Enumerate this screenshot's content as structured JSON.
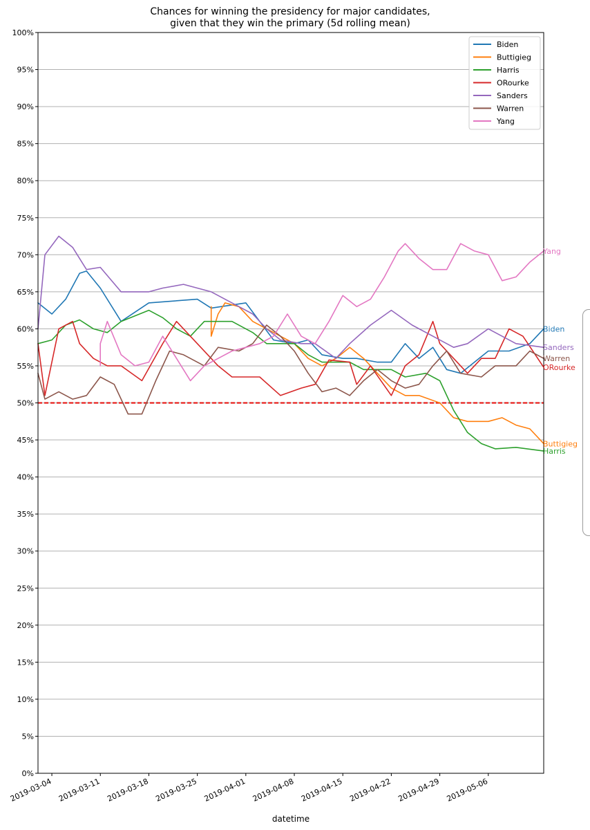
{
  "chart_data": {
    "type": "line",
    "title": [
      "Chances for winning the presidency for major candidates,",
      "given that they win the primary (5d rolling mean)"
    ],
    "xlabel": "datetime",
    "ylabel": "",
    "x_ticks": [
      "2019-03-04",
      "2019-03-11",
      "2019-03-18",
      "2019-03-25",
      "2019-04-01",
      "2019-04-08",
      "2019-04-15",
      "2019-04-22",
      "2019-04-29",
      "2019-05-06"
    ],
    "xlim": [
      "2019-03-02",
      "2019-05-14"
    ],
    "y_ticks": [
      "0%",
      "5%",
      "10%",
      "15%",
      "20%",
      "25%",
      "30%",
      "35%",
      "40%",
      "45%",
      "50%",
      "55%",
      "60%",
      "65%",
      "70%",
      "75%",
      "80%",
      "85%",
      "90%",
      "95%",
      "100%"
    ],
    "ylim": [
      0,
      100
    ],
    "grid": "horizontal",
    "legend_position": "top-right",
    "reference_line": {
      "y": 50,
      "color": "#e8211d",
      "style": "dashed"
    },
    "series": [
      {
        "name": "Biden",
        "color": "#1f77b4",
        "points": [
          [
            "2019-03-02",
            63.5
          ],
          [
            "2019-03-04",
            62
          ],
          [
            "2019-03-06",
            64
          ],
          [
            "2019-03-08",
            67.5
          ],
          [
            "2019-03-09",
            67.8
          ],
          [
            "2019-03-11",
            65.5
          ],
          [
            "2019-03-14",
            61
          ],
          [
            "2019-03-18",
            63.5
          ],
          [
            "2019-03-25",
            64
          ],
          [
            "2019-03-27",
            62.8
          ],
          [
            "2019-04-01",
            63.5
          ],
          [
            "2019-04-03",
            61
          ],
          [
            "2019-04-05",
            58.5
          ],
          [
            "2019-04-08",
            58
          ],
          [
            "2019-04-10",
            58.5
          ],
          [
            "2019-04-12",
            56.5
          ],
          [
            "2019-04-15",
            56
          ],
          [
            "2019-04-17",
            56
          ],
          [
            "2019-04-20",
            55.5
          ],
          [
            "2019-04-22",
            55.5
          ],
          [
            "2019-04-24",
            58
          ],
          [
            "2019-04-26",
            56
          ],
          [
            "2019-04-28",
            57.5
          ],
          [
            "2019-04-30",
            54.5
          ],
          [
            "2019-05-02",
            54
          ],
          [
            "2019-05-04",
            55.5
          ],
          [
            "2019-05-06",
            57
          ],
          [
            "2019-05-09",
            57
          ],
          [
            "2019-05-12",
            58
          ],
          [
            "2019-05-14",
            60
          ]
        ]
      },
      {
        "name": "Buttigieg",
        "color": "#ff7f0e",
        "points": [
          [
            "2019-03-27",
            63
          ],
          [
            "2019-03-27",
            59
          ],
          [
            "2019-03-28",
            62
          ],
          [
            "2019-03-29",
            63.5
          ],
          [
            "2019-03-31",
            63
          ],
          [
            "2019-04-02",
            61
          ],
          [
            "2019-04-04",
            60
          ],
          [
            "2019-04-06",
            59
          ],
          [
            "2019-04-08",
            58
          ],
          [
            "2019-04-10",
            56
          ],
          [
            "2019-04-12",
            55
          ],
          [
            "2019-04-14",
            56
          ],
          [
            "2019-04-16",
            57.5
          ],
          [
            "2019-04-18",
            56
          ],
          [
            "2019-04-20",
            54
          ],
          [
            "2019-04-22",
            52
          ],
          [
            "2019-04-24",
            51
          ],
          [
            "2019-04-26",
            51
          ],
          [
            "2019-04-29",
            50
          ],
          [
            "2019-05-01",
            48
          ],
          [
            "2019-05-03",
            47.5
          ],
          [
            "2019-05-06",
            47.5
          ],
          [
            "2019-05-08",
            48
          ],
          [
            "2019-05-10",
            47
          ],
          [
            "2019-05-12",
            46.5
          ],
          [
            "2019-05-14",
            44.5
          ]
        ]
      },
      {
        "name": "Harris",
        "color": "#2ca02c",
        "points": [
          [
            "2019-03-02",
            58
          ],
          [
            "2019-03-04",
            58.5
          ],
          [
            "2019-03-06",
            60.5
          ],
          [
            "2019-03-08",
            61.2
          ],
          [
            "2019-03-10",
            60
          ],
          [
            "2019-03-12",
            59.5
          ],
          [
            "2019-03-14",
            61
          ],
          [
            "2019-03-18",
            62.5
          ],
          [
            "2019-03-20",
            61.5
          ],
          [
            "2019-03-22",
            60
          ],
          [
            "2019-03-24",
            59
          ],
          [
            "2019-03-26",
            61
          ],
          [
            "2019-03-30",
            61
          ],
          [
            "2019-04-02",
            59.5
          ],
          [
            "2019-04-04",
            58
          ],
          [
            "2019-04-08",
            58
          ],
          [
            "2019-04-10",
            56.5
          ],
          [
            "2019-04-12",
            55.5
          ],
          [
            "2019-04-16",
            55.5
          ],
          [
            "2019-04-18",
            54.5
          ],
          [
            "2019-04-22",
            54.5
          ],
          [
            "2019-04-24",
            53.5
          ],
          [
            "2019-04-27",
            54
          ],
          [
            "2019-04-29",
            53
          ],
          [
            "2019-05-01",
            49
          ],
          [
            "2019-05-03",
            46
          ],
          [
            "2019-05-05",
            44.5
          ],
          [
            "2019-05-07",
            43.8
          ],
          [
            "2019-05-10",
            44
          ],
          [
            "2019-05-14",
            43.5
          ]
        ]
      },
      {
        "name": "ORourke",
        "color": "#d62728",
        "points": [
          [
            "2019-03-02",
            58
          ],
          [
            "2019-03-03",
            51
          ],
          [
            "2019-03-05",
            60
          ],
          [
            "2019-03-07",
            61
          ],
          [
            "2019-03-08",
            58
          ],
          [
            "2019-03-10",
            56
          ],
          [
            "2019-03-12",
            55
          ],
          [
            "2019-03-14",
            55
          ],
          [
            "2019-03-17",
            53
          ],
          [
            "2019-03-20",
            58
          ],
          [
            "2019-03-22",
            61
          ],
          [
            "2019-03-25",
            58
          ],
          [
            "2019-03-28",
            55
          ],
          [
            "2019-03-30",
            53.5
          ],
          [
            "2019-04-03",
            53.5
          ],
          [
            "2019-04-06",
            51
          ],
          [
            "2019-04-09",
            52
          ],
          [
            "2019-04-11",
            52.5
          ],
          [
            "2019-04-13",
            55.8
          ],
          [
            "2019-04-16",
            55.5
          ],
          [
            "2019-04-17",
            52.5
          ],
          [
            "2019-04-19",
            55
          ],
          [
            "2019-04-22",
            51
          ],
          [
            "2019-04-24",
            55
          ],
          [
            "2019-04-26",
            56.5
          ],
          [
            "2019-04-28",
            61
          ],
          [
            "2019-04-29",
            58
          ],
          [
            "2019-05-01",
            56
          ],
          [
            "2019-05-03",
            54
          ],
          [
            "2019-05-05",
            56
          ],
          [
            "2019-05-07",
            56
          ],
          [
            "2019-05-09",
            60
          ],
          [
            "2019-05-11",
            59
          ],
          [
            "2019-05-14",
            54.8
          ]
        ]
      },
      {
        "name": "Sanders",
        "color": "#9467bd",
        "points": [
          [
            "2019-03-02",
            60
          ],
          [
            "2019-03-03",
            70
          ],
          [
            "2019-03-05",
            72.5
          ],
          [
            "2019-03-07",
            71
          ],
          [
            "2019-03-09",
            68
          ],
          [
            "2019-03-11",
            68.3
          ],
          [
            "2019-03-14",
            65
          ],
          [
            "2019-03-18",
            65
          ],
          [
            "2019-03-20",
            65.5
          ],
          [
            "2019-03-23",
            66
          ],
          [
            "2019-03-27",
            65
          ],
          [
            "2019-03-30",
            63.5
          ],
          [
            "2019-04-02",
            62
          ],
          [
            "2019-04-04",
            60
          ],
          [
            "2019-04-06",
            58.5
          ],
          [
            "2019-04-09",
            58
          ],
          [
            "2019-04-11",
            58
          ],
          [
            "2019-04-14",
            56
          ],
          [
            "2019-04-16",
            58
          ],
          [
            "2019-04-19",
            60.5
          ],
          [
            "2019-04-22",
            62.5
          ],
          [
            "2019-04-25",
            60.5
          ],
          [
            "2019-04-28",
            59
          ],
          [
            "2019-05-01",
            57.5
          ],
          [
            "2019-05-03",
            58
          ],
          [
            "2019-05-06",
            60
          ],
          [
            "2019-05-10",
            58
          ],
          [
            "2019-05-14",
            57.5
          ]
        ]
      },
      {
        "name": "Warren",
        "color": "#8c564b",
        "points": [
          [
            "2019-03-02",
            54
          ],
          [
            "2019-03-03",
            50.5
          ],
          [
            "2019-03-05",
            51.5
          ],
          [
            "2019-03-07",
            50.5
          ],
          [
            "2019-03-09",
            51
          ],
          [
            "2019-03-11",
            53.5
          ],
          [
            "2019-03-13",
            52.5
          ],
          [
            "2019-03-15",
            48.5
          ],
          [
            "2019-03-17",
            48.5
          ],
          [
            "2019-03-19",
            53
          ],
          [
            "2019-03-21",
            57
          ],
          [
            "2019-03-23",
            56.5
          ],
          [
            "2019-03-26",
            55
          ],
          [
            "2019-03-28",
            57.5
          ],
          [
            "2019-03-31",
            57
          ],
          [
            "2019-04-02",
            58
          ],
          [
            "2019-04-04",
            60.5
          ],
          [
            "2019-04-06",
            59
          ],
          [
            "2019-04-08",
            57
          ],
          [
            "2019-04-10",
            54
          ],
          [
            "2019-04-12",
            51.5
          ],
          [
            "2019-04-14",
            52
          ],
          [
            "2019-04-16",
            51
          ],
          [
            "2019-04-18",
            53
          ],
          [
            "2019-04-20",
            54.5
          ],
          [
            "2019-04-22",
            53
          ],
          [
            "2019-04-24",
            52
          ],
          [
            "2019-04-26",
            52.5
          ],
          [
            "2019-04-28",
            55
          ],
          [
            "2019-04-30",
            57
          ],
          [
            "2019-05-02",
            54
          ],
          [
            "2019-05-05",
            53.5
          ],
          [
            "2019-05-07",
            55
          ],
          [
            "2019-05-10",
            55
          ],
          [
            "2019-05-12",
            57
          ],
          [
            "2019-05-14",
            56
          ]
        ]
      },
      {
        "name": "Yang",
        "color": "#e377c2",
        "points": [
          [
            "2019-03-11",
            55
          ],
          [
            "2019-03-11",
            58
          ],
          [
            "2019-03-12",
            61
          ],
          [
            "2019-03-14",
            56.5
          ],
          [
            "2019-03-16",
            55
          ],
          [
            "2019-03-18",
            55.5
          ],
          [
            "2019-03-20",
            59
          ],
          [
            "2019-03-22",
            56
          ],
          [
            "2019-03-24",
            53
          ],
          [
            "2019-03-26",
            55
          ],
          [
            "2019-03-28",
            56
          ],
          [
            "2019-03-30",
            57
          ],
          [
            "2019-04-01",
            57.5
          ],
          [
            "2019-04-03",
            58
          ],
          [
            "2019-04-05",
            59
          ],
          [
            "2019-04-07",
            62
          ],
          [
            "2019-04-09",
            59
          ],
          [
            "2019-04-11",
            58
          ],
          [
            "2019-04-13",
            61
          ],
          [
            "2019-04-15",
            64.5
          ],
          [
            "2019-04-17",
            63
          ],
          [
            "2019-04-19",
            64
          ],
          [
            "2019-04-21",
            67
          ],
          [
            "2019-04-23",
            70.5
          ],
          [
            "2019-04-24",
            71.5
          ],
          [
            "2019-04-26",
            69.5
          ],
          [
            "2019-04-28",
            68
          ],
          [
            "2019-04-30",
            68
          ],
          [
            "2019-05-02",
            71.5
          ],
          [
            "2019-05-04",
            70.5
          ],
          [
            "2019-05-06",
            70
          ],
          [
            "2019-05-08",
            66.5
          ],
          [
            "2019-05-10",
            67
          ],
          [
            "2019-05-12",
            69
          ],
          [
            "2019-05-14",
            70.5
          ]
        ]
      }
    ]
  }
}
